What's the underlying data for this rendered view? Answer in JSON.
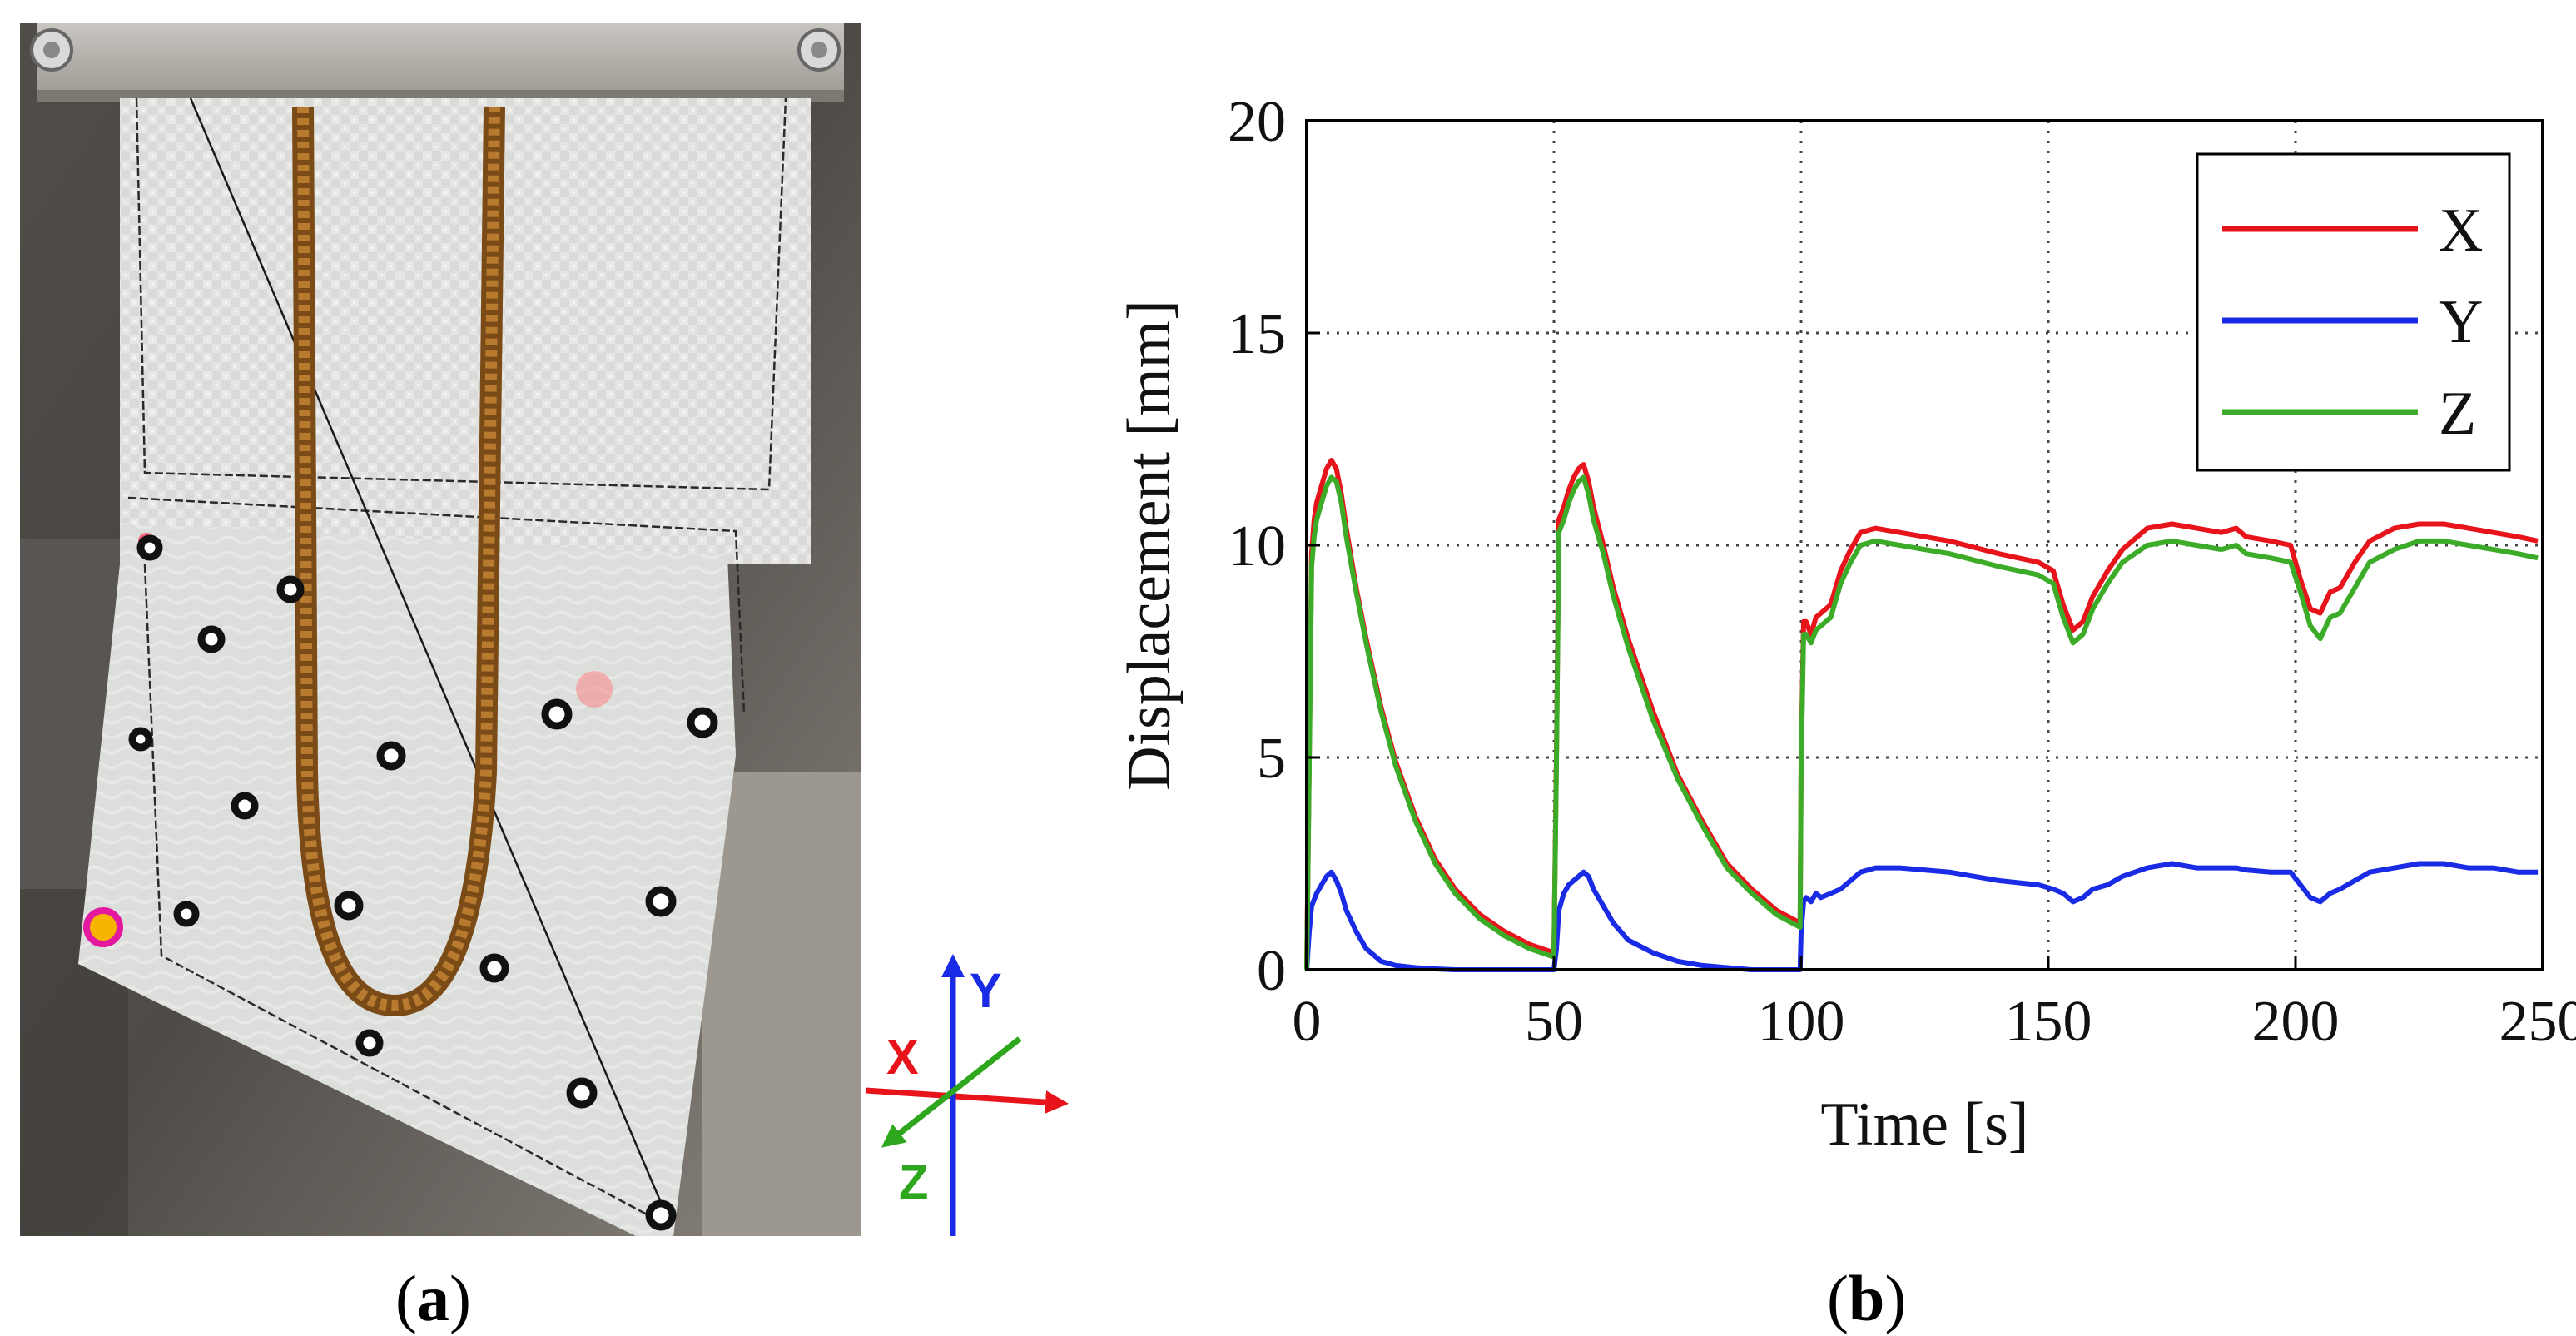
{
  "panels": {
    "a": {
      "caption_open": "(",
      "caption_letter": "a",
      "caption_close": ")"
    },
    "b": {
      "caption_open": "(",
      "caption_letter": "b",
      "caption_close": ")"
    }
  },
  "axis_triad": {
    "x_label": "X",
    "y_label": "Y",
    "z_label": "Z",
    "colors": {
      "x": "#e8141c",
      "y": "#1a2be6",
      "z": "#2ea61e"
    }
  },
  "chart_data": {
    "type": "line",
    "title": "",
    "xlabel": "Time [s]",
    "ylabel": "Displacement [mm]",
    "xlim": [
      0,
      250
    ],
    "ylim": [
      0,
      20
    ],
    "xticks": [
      0,
      50,
      100,
      150,
      200,
      250
    ],
    "yticks": [
      0,
      5,
      10,
      15,
      20
    ],
    "grid": true,
    "legend_position": "top-right",
    "series": [
      {
        "name": "X",
        "color": "#e8141c",
        "x": [
          0,
          0.5,
          1,
          1.5,
          2,
          3,
          4,
          5,
          6,
          7,
          8,
          10,
          12,
          15,
          18,
          22,
          26,
          30,
          35,
          40,
          45,
          50,
          50.5,
          51,
          52,
          53,
          54,
          55,
          56,
          57,
          58,
          60,
          62,
          65,
          70,
          75,
          80,
          85,
          90,
          95,
          99.8,
          100,
          100.5,
          101,
          102,
          103,
          104,
          106,
          108,
          110,
          112,
          115,
          120,
          130,
          140,
          148,
          151,
          153,
          155,
          157,
          159,
          162,
          165,
          170,
          175,
          180,
          185,
          188,
          190,
          195,
          199,
          201,
          203,
          205,
          207,
          209,
          212,
          215,
          220,
          225,
          230,
          235,
          240,
          245,
          249
        ],
        "y": [
          0,
          5,
          9.8,
          10.6,
          11.0,
          11.4,
          11.8,
          12.0,
          11.8,
          11.2,
          10.4,
          9.0,
          7.8,
          6.2,
          4.9,
          3.6,
          2.6,
          1.9,
          1.3,
          0.9,
          0.6,
          0.4,
          5,
          10.6,
          10.9,
          11.3,
          11.6,
          11.8,
          11.9,
          11.5,
          10.9,
          10.0,
          9.0,
          7.8,
          6.1,
          4.6,
          3.5,
          2.5,
          1.9,
          1.4,
          1.1,
          5,
          8.2,
          8.2,
          7.9,
          8.3,
          8.4,
          8.6,
          9.4,
          9.9,
          10.3,
          10.4,
          10.3,
          10.1,
          9.8,
          9.6,
          9.4,
          8.6,
          8.0,
          8.2,
          8.8,
          9.4,
          9.9,
          10.4,
          10.5,
          10.4,
          10.3,
          10.4,
          10.2,
          10.1,
          10.0,
          9.2,
          8.5,
          8.4,
          8.9,
          9.0,
          9.6,
          10.1,
          10.4,
          10.5,
          10.5,
          10.4,
          10.3,
          10.2,
          10.1
        ]
      },
      {
        "name": "Y",
        "color": "#1a2be6",
        "x": [
          0,
          0.5,
          1,
          2,
          3,
          4,
          5,
          6,
          7,
          8,
          10,
          12,
          15,
          18,
          22,
          26,
          30,
          35,
          40,
          45,
          50,
          50.5,
          51,
          52,
          53,
          54,
          55,
          56,
          57,
          58,
          60,
          62,
          65,
          70,
          75,
          80,
          85,
          90,
          95,
          99.8,
          100,
          100.5,
          101,
          102,
          103,
          104,
          106,
          108,
          110,
          112,
          115,
          120,
          130,
          140,
          148,
          151,
          153,
          155,
          157,
          159,
          162,
          165,
          170,
          175,
          180,
          185,
          188,
          190,
          195,
          199,
          201,
          203,
          205,
          207,
          209,
          212,
          215,
          220,
          225,
          230,
          235,
          240,
          245,
          249
        ],
        "y": [
          0,
          0.9,
          1.5,
          1.8,
          2.0,
          2.2,
          2.3,
          2.1,
          1.8,
          1.4,
          0.9,
          0.5,
          0.2,
          0.1,
          0.05,
          0.02,
          0.0,
          0.0,
          0.0,
          0.0,
          0.0,
          0.5,
          1.4,
          1.8,
          2.0,
          2.1,
          2.2,
          2.3,
          2.2,
          1.9,
          1.5,
          1.1,
          0.7,
          0.4,
          0.2,
          0.1,
          0.05,
          0.0,
          0.0,
          0.0,
          0.9,
          1.6,
          1.7,
          1.6,
          1.8,
          1.7,
          1.8,
          1.9,
          2.1,
          2.3,
          2.4,
          2.4,
          2.3,
          2.1,
          2.0,
          1.9,
          1.8,
          1.6,
          1.7,
          1.9,
          2.0,
          2.2,
          2.4,
          2.5,
          2.4,
          2.4,
          2.4,
          2.35,
          2.3,
          2.3,
          2.0,
          1.7,
          1.6,
          1.8,
          1.9,
          2.1,
          2.3,
          2.4,
          2.5,
          2.5,
          2.4,
          2.4,
          2.3,
          2.3
        ]
      },
      {
        "name": "Z",
        "color": "#3cac28",
        "x": [
          0,
          0.5,
          1,
          1.5,
          2,
          3,
          4,
          5,
          6,
          7,
          8,
          10,
          12,
          15,
          18,
          22,
          26,
          30,
          35,
          40,
          45,
          50,
          50.5,
          51,
          52,
          53,
          54,
          55,
          56,
          57,
          58,
          60,
          62,
          65,
          70,
          75,
          80,
          85,
          90,
          95,
          99.8,
          100,
          100.5,
          101,
          102,
          103,
          104,
          106,
          108,
          110,
          112,
          115,
          120,
          130,
          140,
          148,
          151,
          153,
          155,
          157,
          159,
          162,
          165,
          170,
          175,
          180,
          185,
          188,
          190,
          195,
          199,
          201,
          203,
          205,
          207,
          209,
          212,
          215,
          220,
          225,
          230,
          235,
          240,
          245,
          249
        ],
        "y": [
          0,
          4.8,
          9.5,
          10.2,
          10.6,
          11.0,
          11.4,
          11.6,
          11.5,
          11.0,
          10.2,
          8.9,
          7.7,
          6.1,
          4.8,
          3.5,
          2.5,
          1.8,
          1.2,
          0.8,
          0.5,
          0.3,
          4.8,
          10.3,
          10.6,
          11.0,
          11.3,
          11.5,
          11.6,
          11.2,
          10.6,
          9.8,
          8.8,
          7.6,
          5.9,
          4.5,
          3.4,
          2.4,
          1.8,
          1.3,
          1.0,
          4.8,
          7.9,
          7.9,
          7.7,
          8.0,
          8.1,
          8.3,
          9.1,
          9.6,
          10.0,
          10.1,
          10.0,
          9.8,
          9.5,
          9.3,
          9.1,
          8.3,
          7.7,
          7.9,
          8.5,
          9.1,
          9.6,
          10.0,
          10.1,
          10.0,
          9.9,
          10.0,
          9.8,
          9.7,
          9.6,
          8.9,
          8.1,
          7.8,
          8.3,
          8.4,
          9.0,
          9.6,
          9.9,
          10.1,
          10.1,
          10.0,
          9.9,
          9.8,
          9.7
        ]
      }
    ]
  }
}
